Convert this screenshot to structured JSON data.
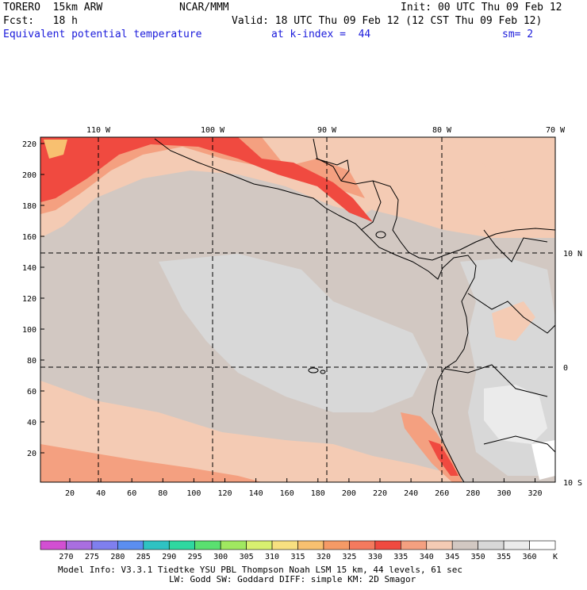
{
  "header": {
    "line1_left": "TORERO  15km ARW",
    "line1_center": "NCAR/MMM",
    "line1_right": "Init: 00 UTC Thu 09 Feb 12",
    "line2_left": "Fcst:   18 h",
    "line2_right": "Valid: 18 UTC Thu 09 Feb 12 (12 CST Thu 09 Feb 12)",
    "line3_left": "Equivalent potential temperature",
    "line3_center": "at k-index =  44",
    "line3_right": "sm= 2"
  },
  "map": {
    "top_lon_labels": [
      "110 W",
      "100 W",
      "90 W",
      "80 W",
      "70 W"
    ],
    "right_lat_labels": [
      "10 N",
      "0",
      "10 S"
    ],
    "left_axis_ticks": [
      "220",
      "200",
      "180",
      "160",
      "140",
      "120",
      "100",
      "80",
      "60",
      "40",
      "20"
    ],
    "bottom_axis_ticks": [
      "20",
      "40",
      "60",
      "80",
      "100",
      "120",
      "140",
      "160",
      "180",
      "200",
      "220",
      "240",
      "260",
      "280",
      "300",
      "320"
    ]
  },
  "colorbar": {
    "labels": [
      "270",
      "275",
      "280",
      "285",
      "290",
      "295",
      "300",
      "305",
      "310",
      "315",
      "320",
      "325",
      "330",
      "335",
      "340",
      "345",
      "350",
      "355",
      "360"
    ],
    "unit": "K",
    "colors": [
      "#d24fd2",
      "#a96ee0",
      "#7f7fee",
      "#5b8ef0",
      "#2fc2c2",
      "#2fd8a0",
      "#5ae070",
      "#a0e860",
      "#d8f070",
      "#f8e080",
      "#f8c070",
      "#f59a66",
      "#f47a5e",
      "#f04a40",
      "#f4a080",
      "#f4cbb4",
      "#d2c8c2",
      "#d8d8d8",
      "#ebebeb",
      "#ffffff"
    ]
  },
  "footer": {
    "line1": "Model Info: V3.3.1    Tiedtke YSU PBL  Thompson    Noah LSM  15 km,   44 levels,   61 sec",
    "line2": "LW: Godd SW: Goddard DIFF: simple KM: 2D Smagor"
  }
}
